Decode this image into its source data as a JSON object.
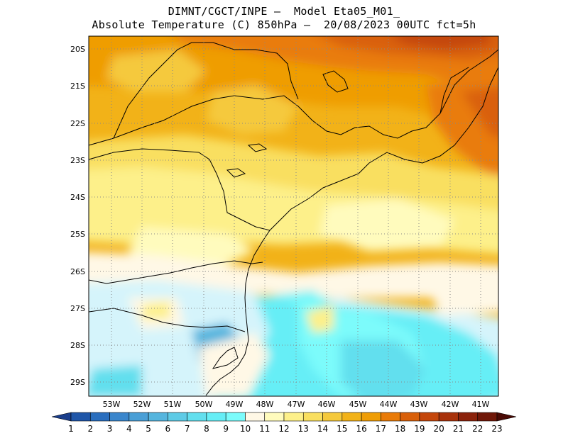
{
  "title_line1": "DIMNT/CGCT/INPE –  Model Eta05_M01_",
  "title_line2": "Absolute Temperature (C) 850hPa –  20/08/2023 00UTC fct=5h",
  "lat_labels": [
    "20S",
    "21S",
    "22S",
    "23S",
    "24S",
    "25S",
    "26S",
    "27S",
    "28S",
    "29S"
  ],
  "lon_labels": [
    "53W",
    "52W",
    "51W",
    "50W",
    "49W",
    "48W",
    "47W",
    "46W",
    "45W",
    "44W",
    "43W",
    "42W",
    "41W"
  ],
  "colorbar": {
    "labels": [
      "1",
      "2",
      "3",
      "4",
      "5",
      "6",
      "7",
      "8",
      "9",
      "10",
      "11",
      "12",
      "13",
      "14",
      "15",
      "16",
      "17",
      "18",
      "19",
      "20",
      "21",
      "22",
      "23"
    ],
    "colors": [
      "#1a3e8c",
      "#1f56a8",
      "#2a6ebe",
      "#3a86cc",
      "#4a9fd6",
      "#55b5de",
      "#5ecbe6",
      "#62dfee",
      "#66eef6",
      "#7bfbfb",
      "#fff8e6",
      "#fffbbd",
      "#fdf08a",
      "#f9df60",
      "#f5c93c",
      "#f2b218",
      "#ef9d05",
      "#e97b08",
      "#d9600a",
      "#c4460b",
      "#a8320b",
      "#8b220b",
      "#701708",
      "#4a0a05"
    ]
  }
}
